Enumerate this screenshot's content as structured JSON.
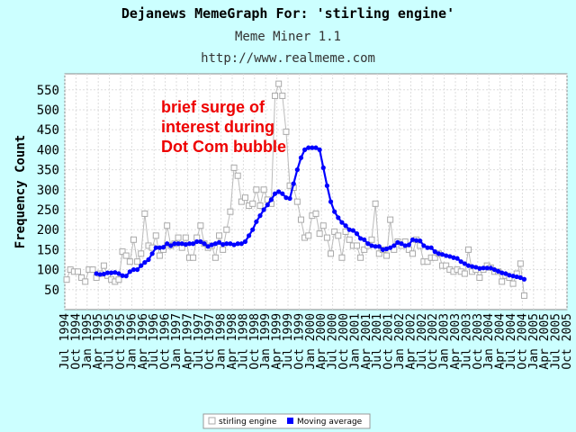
{
  "header": {
    "title": "Dejanews MemeGraph For: 'stirling engine'",
    "subtitle": "Meme Miner 1.1",
    "url": "http://www.realmeme.com"
  },
  "annotation": [
    "brief surge of",
    "interest during",
    "Dot Com bubble"
  ],
  "legend": {
    "raw_label": "stirling engine",
    "avg_label": "Moving average"
  },
  "colors": {
    "background": "#ccffff",
    "plot_bg": "#ffffff",
    "raw": "#aaaaaa",
    "average": "#0000ff",
    "annotation": "#ee0000"
  },
  "chart_data": {
    "type": "line",
    "title": "Dejanews MemeGraph For: 'stirling engine'",
    "ylabel": "Frequency Count",
    "xlabel": "",
    "ylim": [
      0,
      590
    ],
    "yticks": [
      50,
      100,
      150,
      200,
      250,
      300,
      350,
      400,
      450,
      500,
      550
    ],
    "grid": true,
    "legend_position": "bottom-center",
    "x_start": "1994-07",
    "x_end": "2005-10",
    "xtick_labels": [
      "Jul 1994",
      "Oct 1994",
      "Jan 1995",
      "Apr 1995",
      "Jul 1995",
      "Oct 1995",
      "Jan 1996",
      "Apr 1996",
      "Jul 1996",
      "Oct 1996",
      "Jan 1997",
      "Apr 1997",
      "Jul 1997",
      "Oct 1997",
      "Jan 1998",
      "Apr 1998",
      "Jul 1998",
      "Oct 1998",
      "Jan 1999",
      "Apr 1999",
      "Jul 1999",
      "Oct 1999",
      "Jan 2000",
      "Apr 2000",
      "Jul 2000",
      "Oct 2000",
      "Jan 2001",
      "Apr 2001",
      "Jul 2001",
      "Oct 2001",
      "Jan 2002",
      "Apr 2002",
      "Jul 2002",
      "Oct 2002",
      "Jan 2003",
      "Apr 2003",
      "Jul 2003",
      "Oct 2003",
      "Jan 2004",
      "Apr 2004",
      "Jul 2004",
      "Oct 2004",
      "Jan 2005",
      "Apr 2005",
      "Jul 2005",
      "Oct 2005"
    ],
    "series": [
      {
        "name": "stirling engine",
        "values": [
          75,
          100,
          95,
          95,
          80,
          70,
          100,
          100,
          80,
          90,
          110,
          85,
          75,
          70,
          75,
          145,
          135,
          120,
          175,
          120,
          140,
          240,
          160,
          155,
          185,
          135,
          150,
          210,
          160,
          165,
          180,
          155,
          180,
          130,
          130,
          180,
          210,
          165,
          155,
          160,
          130,
          185,
          150,
          200,
          245,
          355,
          335,
          270,
          280,
          260,
          265,
          300,
          260,
          300,
          275,
          265,
          535,
          565,
          535,
          445,
          310,
          305,
          270,
          225,
          180,
          185,
          235,
          240,
          190,
          210,
          180,
          140,
          195,
          185,
          130,
          195,
          175,
          160,
          160,
          130,
          150,
          160,
          175,
          265,
          140,
          150,
          135,
          225,
          150,
          170,
          160,
          170,
          150,
          140,
          175,
          160,
          120,
          120,
          130,
          130,
          140,
          110,
          110,
          100,
          95,
          100,
          95,
          90,
          150,
          95,
          100,
          80,
          100,
          110,
          105,
          95,
          95,
          70,
          85,
          80,
          65,
          90,
          115,
          35
        ]
      },
      {
        "name": "Moving average",
        "start_index": 8,
        "values": [
          90,
          88,
          89,
          92,
          92,
          93,
          90,
          85,
          84,
          95,
          100,
          100,
          110,
          118,
          125,
          140,
          155,
          155,
          156,
          165,
          160,
          165,
          165,
          165,
          163,
          165,
          165,
          170,
          170,
          165,
          158,
          162,
          165,
          168,
          163,
          165,
          165,
          162,
          165,
          165,
          170,
          185,
          200,
          220,
          235,
          250,
          262,
          275,
          290,
          295,
          290,
          280,
          278,
          315,
          350,
          380,
          400,
          405,
          405,
          405,
          400,
          355,
          310,
          270,
          245,
          230,
          218,
          210,
          200,
          198,
          190,
          178,
          175,
          165,
          160,
          158,
          158,
          150,
          152,
          155,
          160,
          168,
          165,
          160,
          162,
          175,
          173,
          172,
          160,
          155,
          155,
          145,
          140,
          138,
          135,
          133,
          130,
          128,
          120,
          115,
          110,
          108,
          106,
          103,
          104,
          104,
          104,
          100,
          96,
          92,
          90,
          86,
          84,
          82,
          80,
          76
        ]
      }
    ]
  }
}
